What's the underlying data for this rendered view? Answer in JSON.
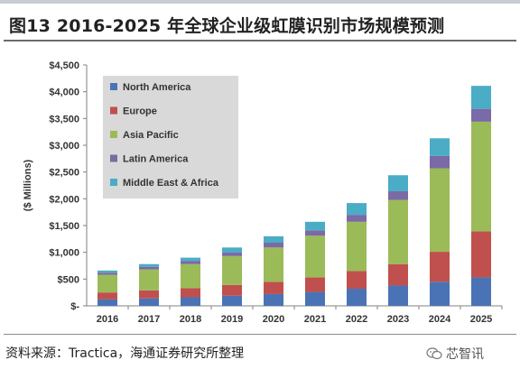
{
  "figure": {
    "title": "图13 2016-2025 年全球企业级虹膜识别市场规模预测",
    "source": "资料来源：Tractica，海通证券研究所整理",
    "watermark": "芯智讯",
    "watermark_icon": "wechat-icon"
  },
  "chart_data": {
    "type": "bar",
    "stacked": true,
    "categories": [
      "2016",
      "2017",
      "2018",
      "2019",
      "2020",
      "2021",
      "2022",
      "2023",
      "2024",
      "2025"
    ],
    "series": [
      {
        "name": "North America",
        "color": "#4a73b5",
        "values": [
          120,
          140,
          160,
          190,
          220,
          260,
          320,
          380,
          450,
          530
        ]
      },
      {
        "name": "Europe",
        "color": "#c0504d",
        "values": [
          130,
          150,
          170,
          200,
          230,
          270,
          330,
          400,
          560,
          860
        ]
      },
      {
        "name": "Asia Pacific",
        "color": "#9bbb59",
        "values": [
          330,
          390,
          450,
          540,
          640,
          780,
          920,
          1200,
          1560,
          2050
        ]
      },
      {
        "name": "Latin America",
        "color": "#7a6aa5",
        "values": [
          40,
          50,
          60,
          70,
          90,
          100,
          130,
          160,
          230,
          240
        ]
      },
      {
        "name": "Middle East & Africa",
        "color": "#4bacc6",
        "values": [
          40,
          50,
          60,
          90,
          120,
          160,
          220,
          300,
          330,
          430
        ]
      }
    ],
    "ylabel": "($ Millions)",
    "ylim": [
      0,
      4500
    ],
    "yticks": [
      0,
      500,
      1000,
      1500,
      2000,
      2500,
      3000,
      3500,
      4000,
      4500
    ],
    "ytick_labels": [
      "$-",
      "$500",
      "$1,000",
      "$1,500",
      "$2,000",
      "$2,500",
      "$3,000",
      "$3,500",
      "$4,000",
      "$4,500"
    ],
    "grid": false,
    "legend": "top-left, inside plot"
  }
}
